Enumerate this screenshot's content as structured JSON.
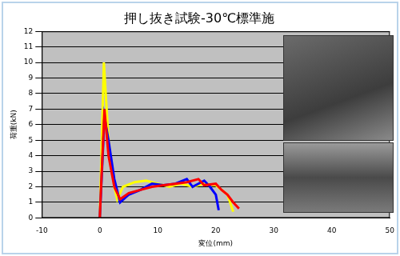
{
  "chart_data": {
    "type": "line",
    "title": "押し抜き試験-30℃標準施",
    "x_label": "変位(mm)",
    "y_label": "荷重(kN)",
    "xlim": [
      -10,
      50
    ],
    "xticks": [
      -10,
      0,
      10,
      20,
      30,
      40,
      50
    ],
    "ylim": [
      0,
      12
    ],
    "yticks": [
      0,
      1,
      2,
      3,
      4,
      5,
      6,
      7,
      8,
      9,
      10,
      11,
      12
    ],
    "grid": "y",
    "series": [
      {
        "color": "#ff0000",
        "x": [
          0,
          0.8,
          1.5,
          2.5,
          3.5,
          5,
          7,
          9,
          11,
          13,
          15,
          17,
          18,
          20,
          21,
          22,
          23,
          24
        ],
        "values": [
          0,
          7.0,
          4.0,
          2.0,
          1.2,
          1.6,
          1.8,
          2.0,
          2.1,
          2.2,
          2.3,
          2.5,
          2.1,
          2.2,
          1.8,
          1.5,
          1.0,
          0.6
        ]
      },
      {
        "color": "#0000ff",
        "x": [
          0,
          0.8,
          1.5,
          2.5,
          3.5,
          5,
          7,
          9,
          11,
          13,
          15,
          16,
          18,
          19,
          20,
          20.5
        ],
        "values": [
          0,
          6.5,
          5.0,
          2.5,
          1.0,
          1.5,
          1.8,
          2.2,
          2.1,
          2.2,
          2.5,
          2.0,
          2.4,
          2.0,
          1.5,
          0.5
        ]
      },
      {
        "color": "#ffff00",
        "x": [
          0,
          0.7,
          1.5,
          2.5,
          3,
          4,
          6,
          8,
          10,
          12,
          14,
          16,
          18,
          20,
          22,
          23
        ],
        "values": [
          0,
          10.0,
          5.0,
          2.0,
          1.2,
          2.0,
          2.3,
          2.4,
          2.2,
          2.0,
          2.2,
          2.0,
          2.2,
          2.1,
          1.5,
          0.4
        ]
      }
    ]
  }
}
